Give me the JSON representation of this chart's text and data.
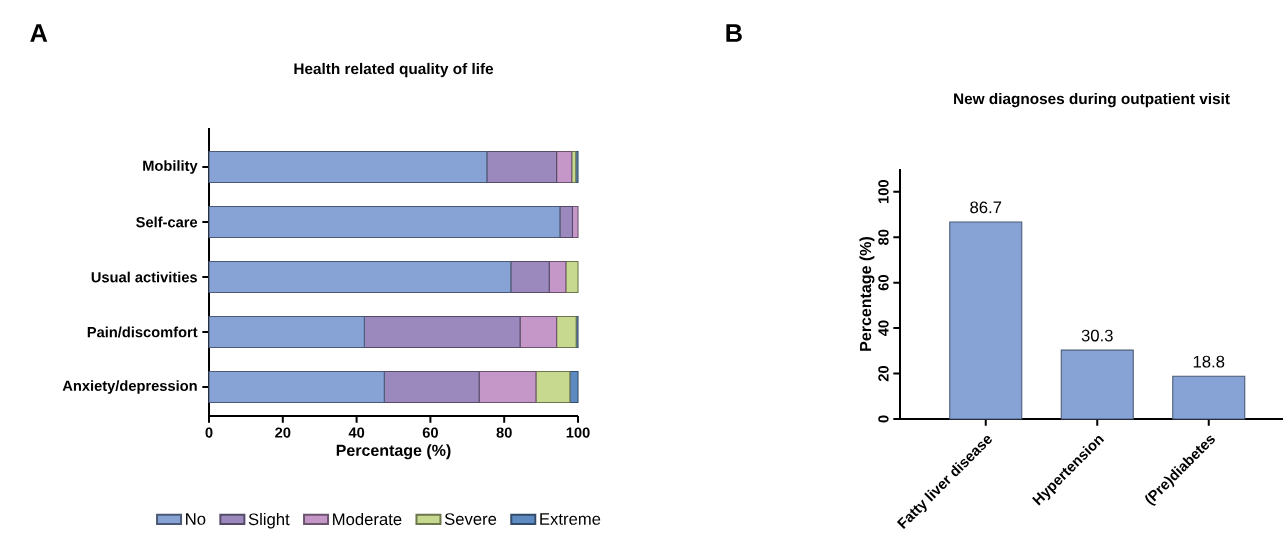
{
  "chart_data": [
    {
      "type": "bar",
      "orientation": "horizontal",
      "stacked": true,
      "title": "Health related quality of life",
      "xlabel": "Percentage (%)",
      "annotations": [
        "A"
      ],
      "categories": [
        "Mobility",
        "Self-care",
        "Usual activities",
        "Pain/discomfort",
        "Anxiety/depression"
      ],
      "series": [
        {
          "name": "No",
          "color": "#87a3d6",
          "values": [
            75.3,
            95.1,
            81.8,
            42.1,
            47.5
          ]
        },
        {
          "name": "Slight",
          "color": "#9b88bd",
          "values": [
            18.9,
            3.4,
            10.4,
            42.2,
            25.7
          ]
        },
        {
          "name": "Moderate",
          "color": "#c597c8",
          "values": [
            4.1,
            1.5,
            4.5,
            9.9,
            15.4
          ]
        },
        {
          "name": "Severe",
          "color": "#c6d98e",
          "values": [
            1.1,
            0,
            3.3,
            5.3,
            9.2
          ]
        },
        {
          "name": "Extreme",
          "color": "#5d8ac0",
          "values": [
            0.6,
            0,
            0,
            0.5,
            2.2
          ]
        }
      ],
      "xlim": [
        0,
        100
      ],
      "xticks": [
        0,
        20,
        40,
        60,
        80,
        100
      ],
      "legend": "bottom"
    },
    {
      "type": "bar",
      "title": "New diagnoses during outpatient visit",
      "ylabel": "Percentage (%)",
      "annotations": [
        "B"
      ],
      "categories": [
        "Fatty liver disease",
        "Hypertension",
        "(Pre)diabetes"
      ],
      "values": [
        86.7,
        30.3,
        18.8
      ],
      "color": "#87a3d6",
      "data_labels": true,
      "ylim": [
        0,
        110
      ],
      "yticks": [
        0,
        20,
        40,
        60,
        80,
        100
      ]
    }
  ]
}
